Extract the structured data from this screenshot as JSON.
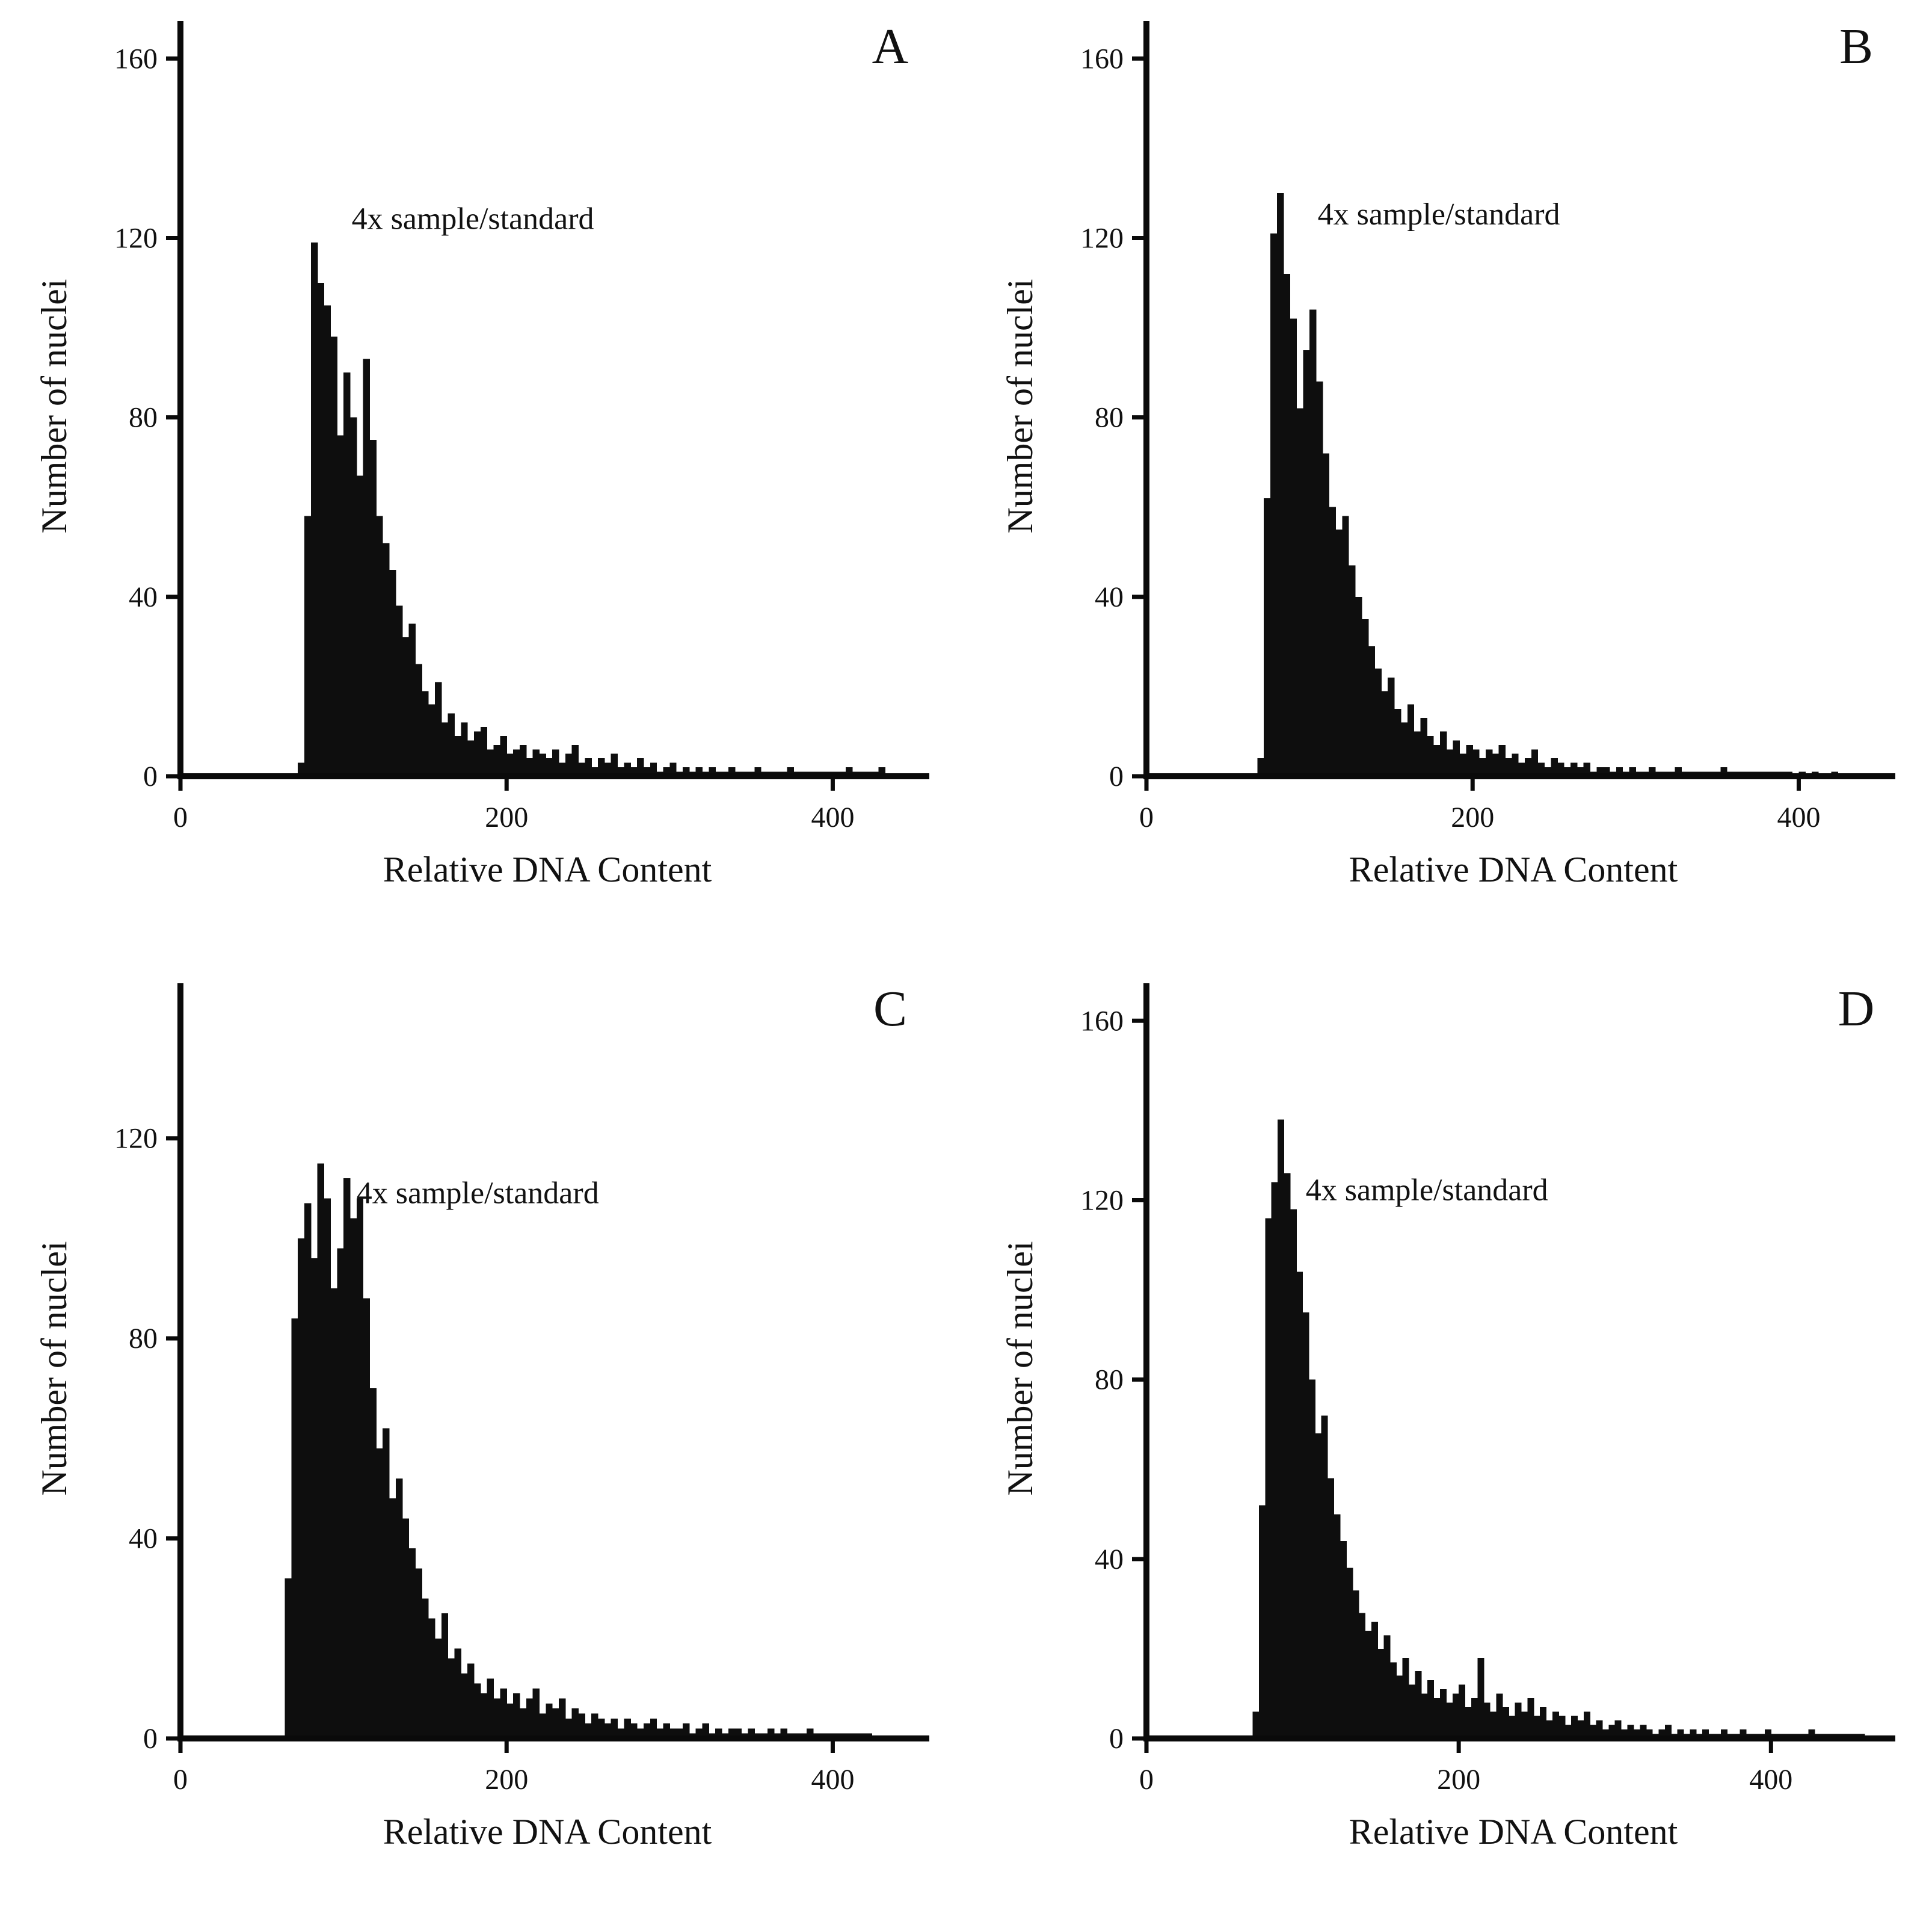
{
  "figure": {
    "description": "Four flow-cytometry DNA histograms, panels A-D",
    "bar_color": "#0e0e0e"
  },
  "chart_data": [
    {
      "type": "bar",
      "panel": "A",
      "xlabel": "Relative DNA Content",
      "ylabel": "Number of nuclei",
      "annotation": "4x sample/standard",
      "annotation_x": 105,
      "annotation_y": 122,
      "xlim": [
        0,
        450
      ],
      "ylim": [
        0,
        165
      ],
      "xticks": [
        0,
        200,
        400
      ],
      "yticks": [
        0,
        40,
        80,
        120,
        160
      ],
      "bin_start": 72,
      "bin_width": 4,
      "values": [
        3,
        58,
        119,
        110,
        105,
        98,
        76,
        90,
        80,
        67,
        93,
        75,
        58,
        52,
        46,
        38,
        31,
        34,
        25,
        19,
        16,
        21,
        12,
        14,
        9,
        12,
        8,
        10,
        11,
        6,
        7,
        9,
        5,
        6,
        7,
        4,
        6,
        5,
        4,
        6,
        3,
        5,
        7,
        3,
        4,
        2,
        4,
        3,
        5,
        2,
        3,
        2,
        4,
        2,
        3,
        1,
        2,
        3,
        1,
        2,
        1,
        2,
        1,
        2,
        1,
        1,
        2,
        1,
        1,
        1,
        2,
        1,
        1,
        1,
        1,
        2,
        1,
        1,
        1,
        1,
        1,
        1,
        1,
        1,
        2,
        1,
        1,
        1,
        1,
        2
      ]
    },
    {
      "type": "bar",
      "panel": "B",
      "xlabel": "Relative DNA Content",
      "ylabel": "Number of nuclei",
      "annotation": "4x sample/standard",
      "annotation_x": 105,
      "annotation_y": 123,
      "xlim": [
        0,
        450
      ],
      "ylim": [
        0,
        165
      ],
      "xticks": [
        0,
        200,
        400
      ],
      "yticks": [
        0,
        40,
        80,
        120,
        160
      ],
      "bin_start": 68,
      "bin_width": 4,
      "values": [
        4,
        62,
        121,
        130,
        112,
        102,
        82,
        95,
        104,
        88,
        72,
        60,
        55,
        58,
        47,
        40,
        35,
        29,
        24,
        19,
        22,
        15,
        12,
        16,
        10,
        13,
        9,
        7,
        10,
        6,
        8,
        5,
        7,
        6,
        4,
        6,
        5,
        7,
        4,
        5,
        3,
        4,
        6,
        3,
        2,
        4,
        3,
        2,
        3,
        2,
        3,
        1,
        2,
        2,
        1,
        2,
        1,
        2,
        1,
        1,
        2,
        1,
        1,
        1,
        2,
        1,
        1,
        1,
        1,
        1,
        1,
        2,
        1,
        1,
        1,
        1,
        1,
        1,
        1,
        1,
        1,
        1,
        0,
        1,
        0,
        1,
        0,
        0,
        1,
        0
      ]
    },
    {
      "type": "bar",
      "panel": "C",
      "xlabel": "Relative DNA Content",
      "ylabel": "Number of nuclei",
      "annotation": "4x sample/standard",
      "annotation_x": 108,
      "annotation_y": 107,
      "xlim": [
        0,
        450
      ],
      "ylim": [
        0,
        148
      ],
      "xticks": [
        0,
        200,
        400
      ],
      "yticks": [
        0,
        40,
        80,
        120
      ],
      "bin_start": 64,
      "bin_width": 4,
      "values": [
        32,
        84,
        100,
        107,
        96,
        115,
        108,
        90,
        98,
        112,
        104,
        108,
        88,
        70,
        58,
        62,
        48,
        52,
        44,
        38,
        34,
        28,
        24,
        20,
        25,
        16,
        18,
        13,
        15,
        11,
        9,
        12,
        8,
        10,
        7,
        9,
        6,
        8,
        10,
        5,
        7,
        6,
        8,
        4,
        6,
        5,
        3,
        5,
        4,
        3,
        4,
        2,
        4,
        3,
        2,
        3,
        4,
        2,
        3,
        2,
        2,
        3,
        1,
        2,
        3,
        1,
        2,
        1,
        2,
        2,
        1,
        2,
        1,
        1,
        2,
        1,
        2,
        1,
        1,
        1,
        2,
        1,
        1,
        1,
        1,
        1,
        1,
        1,
        1,
        1
      ]
    },
    {
      "type": "bar",
      "panel": "D",
      "xlabel": "Relative DNA Content",
      "ylabel": "Number of nuclei",
      "annotation": "4x sample/standard",
      "annotation_x": 102,
      "annotation_y": 120,
      "xlim": [
        0,
        470
      ],
      "ylim": [
        0,
        165
      ],
      "xticks": [
        0,
        200,
        400
      ],
      "yticks": [
        0,
        40,
        80,
        120,
        160
      ],
      "bin_start": 68,
      "bin_width": 4,
      "values": [
        6,
        52,
        116,
        124,
        138,
        126,
        118,
        104,
        95,
        80,
        68,
        72,
        58,
        50,
        44,
        38,
        33,
        28,
        24,
        26,
        20,
        23,
        17,
        14,
        18,
        12,
        15,
        10,
        13,
        9,
        11,
        8,
        10,
        12,
        7,
        9,
        18,
        8,
        6,
        10,
        7,
        5,
        8,
        6,
        9,
        5,
        7,
        4,
        6,
        5,
        3,
        5,
        4,
        6,
        3,
        4,
        2,
        3,
        4,
        2,
        3,
        2,
        3,
        2,
        1,
        2,
        3,
        1,
        2,
        1,
        2,
        1,
        2,
        1,
        1,
        2,
        1,
        1,
        2,
        1,
        1,
        1,
        2,
        1,
        1,
        1,
        1,
        1,
        1,
        2,
        1,
        1,
        1,
        1,
        1,
        1,
        1,
        1
      ]
    }
  ]
}
